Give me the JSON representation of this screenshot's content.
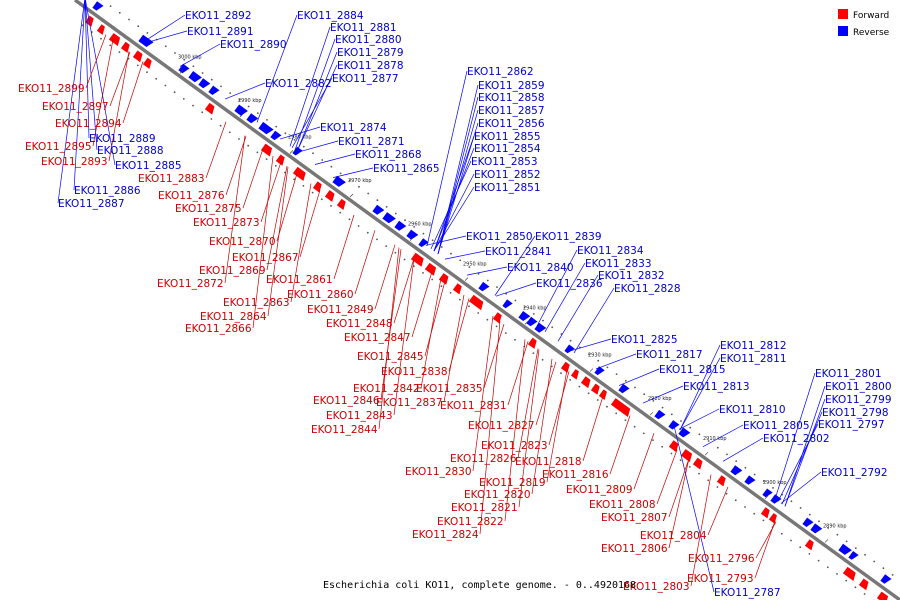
{
  "caption": "Escherichia coli KO11, complete genome. - 0..4920168",
  "colors": {
    "forward": "#ff0000",
    "reverse": "#0000ff",
    "backbone": "#777777",
    "forward_text": "#cc0000",
    "reverse_text": "#0000cc"
  },
  "legend": [
    {
      "label": "Forward",
      "color": "#ff0000"
    },
    {
      "label": "Reverse",
      "color": "#0000ff"
    }
  ],
  "ticks": [
    "3000 kbp",
    "2990 kbp",
    "2980 kbp",
    "2970 kbp",
    "2960 kbp",
    "2950 kbp",
    "2940 kbp",
    "2930 kbp",
    "2920 kbp",
    "2910 kbp",
    "2900 kbp",
    "2890 kbp"
  ],
  "genes": [
    {
      "id": "EKO11_2892",
      "strand": "reverse"
    },
    {
      "id": "EKO11_2891",
      "strand": "reverse"
    },
    {
      "id": "EKO11_2890",
      "strand": "reverse"
    },
    {
      "id": "EKO11_2884",
      "strand": "reverse"
    },
    {
      "id": "EKO11_2881",
      "strand": "reverse"
    },
    {
      "id": "EKO11_2880",
      "strand": "reverse"
    },
    {
      "id": "EKO11_2879",
      "strand": "reverse"
    },
    {
      "id": "EKO11_2878",
      "strand": "reverse"
    },
    {
      "id": "EKO11_2882",
      "strand": "reverse"
    },
    {
      "id": "EKO11_2877",
      "strand": "reverse"
    },
    {
      "id": "EKO11_2874",
      "strand": "reverse"
    },
    {
      "id": "EKO11_2871",
      "strand": "reverse"
    },
    {
      "id": "EKO11_2868",
      "strand": "reverse"
    },
    {
      "id": "EKO11_2865",
      "strand": "reverse"
    },
    {
      "id": "EKO11_2862",
      "strand": "reverse"
    },
    {
      "id": "EKO11_2859",
      "strand": "reverse"
    },
    {
      "id": "EKO11_2858",
      "strand": "reverse"
    },
    {
      "id": "EKO11_2857",
      "strand": "reverse"
    },
    {
      "id": "EKO11_2856",
      "strand": "reverse"
    },
    {
      "id": "EKO11_2855",
      "strand": "reverse"
    },
    {
      "id": "EKO11_2854",
      "strand": "reverse"
    },
    {
      "id": "EKO11_2853",
      "strand": "reverse"
    },
    {
      "id": "EKO11_2852",
      "strand": "reverse"
    },
    {
      "id": "EKO11_2851",
      "strand": "reverse"
    },
    {
      "id": "EKO11_2850",
      "strand": "reverse"
    },
    {
      "id": "EKO11_2839",
      "strand": "reverse"
    },
    {
      "id": "EKO11_2841",
      "strand": "reverse"
    },
    {
      "id": "EKO11_2834",
      "strand": "reverse"
    },
    {
      "id": "EKO11_2840",
      "strand": "reverse"
    },
    {
      "id": "EKO11_2833",
      "strand": "reverse"
    },
    {
      "id": "EKO11_2832",
      "strand": "reverse"
    },
    {
      "id": "EKO11_2836",
      "strand": "reverse"
    },
    {
      "id": "EKO11_2828",
      "strand": "reverse"
    },
    {
      "id": "EKO11_2825",
      "strand": "reverse"
    },
    {
      "id": "EKO11_2817",
      "strand": "reverse"
    },
    {
      "id": "EKO11_2812",
      "strand": "reverse"
    },
    {
      "id": "EKO11_2811",
      "strand": "reverse"
    },
    {
      "id": "EKO11_2815",
      "strand": "reverse"
    },
    {
      "id": "EKO11_2813",
      "strand": "reverse"
    },
    {
      "id": "EKO11_2810",
      "strand": "reverse"
    },
    {
      "id": "EKO11_2805",
      "strand": "reverse"
    },
    {
      "id": "EKO11_2802",
      "strand": "reverse"
    },
    {
      "id": "EKO11_2801",
      "strand": "reverse"
    },
    {
      "id": "EKO11_2800",
      "strand": "reverse"
    },
    {
      "id": "EKO11_2799",
      "strand": "reverse"
    },
    {
      "id": "EKO11_2798",
      "strand": "reverse"
    },
    {
      "id": "EKO11_2797",
      "strand": "reverse"
    },
    {
      "id": "EKO11_2792",
      "strand": "reverse"
    },
    {
      "id": "EKO11_2787",
      "strand": "reverse"
    },
    {
      "id": "EKO11_2889",
      "strand": "reverse"
    },
    {
      "id": "EKO11_2888",
      "strand": "reverse"
    },
    {
      "id": "EKO11_2885",
      "strand": "reverse"
    },
    {
      "id": "EKO11_2886",
      "strand": "reverse"
    },
    {
      "id": "EKO11_2887",
      "strand": "reverse"
    },
    {
      "id": "EKO11_2899",
      "strand": "forward"
    },
    {
      "id": "EKO11_2897",
      "strand": "forward"
    },
    {
      "id": "EKO11_2894",
      "strand": "forward"
    },
    {
      "id": "EKO11_2895",
      "strand": "forward"
    },
    {
      "id": "EKO11_2893",
      "strand": "forward"
    },
    {
      "id": "EKO11_2883",
      "strand": "forward"
    },
    {
      "id": "EKO11_2876",
      "strand": "forward"
    },
    {
      "id": "EKO11_2875",
      "strand": "forward"
    },
    {
      "id": "EKO11_2873",
      "strand": "forward"
    },
    {
      "id": "EKO11_2870",
      "strand": "forward"
    },
    {
      "id": "EKO11_2867",
      "strand": "forward"
    },
    {
      "id": "EKO11_2869",
      "strand": "forward"
    },
    {
      "id": "EKO11_2872",
      "strand": "forward"
    },
    {
      "id": "EKO11_2861",
      "strand": "forward"
    },
    {
      "id": "EKO11_2860",
      "strand": "forward"
    },
    {
      "id": "EKO11_2863",
      "strand": "forward"
    },
    {
      "id": "EKO11_2864",
      "strand": "forward"
    },
    {
      "id": "EKO11_2866",
      "strand": "forward"
    },
    {
      "id": "EKO11_2849",
      "strand": "forward"
    },
    {
      "id": "EKO11_2848",
      "strand": "forward"
    },
    {
      "id": "EKO11_2847",
      "strand": "forward"
    },
    {
      "id": "EKO11_2845",
      "strand": "forward"
    },
    {
      "id": "EKO11_2838",
      "strand": "forward"
    },
    {
      "id": "EKO11_2842",
      "strand": "forward"
    },
    {
      "id": "EKO11_2835",
      "strand": "forward"
    },
    {
      "id": "EKO11_2846",
      "strand": "forward"
    },
    {
      "id": "EKO11_2837",
      "strand": "forward"
    },
    {
      "id": "EKO11_2831",
      "strand": "forward"
    },
    {
      "id": "EKO11_2843",
      "strand": "forward"
    },
    {
      "id": "EKO11_2844",
      "strand": "forward"
    },
    {
      "id": "EKO11_2827",
      "strand": "forward"
    },
    {
      "id": "EKO11_2823",
      "strand": "forward"
    },
    {
      "id": "EKO11_2826",
      "strand": "forward"
    },
    {
      "id": "EKO11_2818",
      "strand": "forward"
    },
    {
      "id": "EKO11_2830",
      "strand": "forward"
    },
    {
      "id": "EKO11_2816",
      "strand": "forward"
    },
    {
      "id": "EKO11_2819",
      "strand": "forward"
    },
    {
      "id": "EKO11_2820",
      "strand": "forward"
    },
    {
      "id": "EKO11_2809",
      "strand": "forward"
    },
    {
      "id": "EKO11_2821",
      "strand": "forward"
    },
    {
      "id": "EKO11_2808",
      "strand": "forward"
    },
    {
      "id": "EKO11_2807",
      "strand": "forward"
    },
    {
      "id": "EKO11_2822",
      "strand": "forward"
    },
    {
      "id": "EKO11_2824",
      "strand": "forward"
    },
    {
      "id": "EKO11_2804",
      "strand": "forward"
    },
    {
      "id": "EKO11_2806",
      "strand": "forward"
    },
    {
      "id": "EKO11_2796",
      "strand": "forward"
    },
    {
      "id": "EKO11_2793",
      "strand": "forward"
    },
    {
      "id": "EKO11_2803",
      "strand": "forward"
    }
  ]
}
